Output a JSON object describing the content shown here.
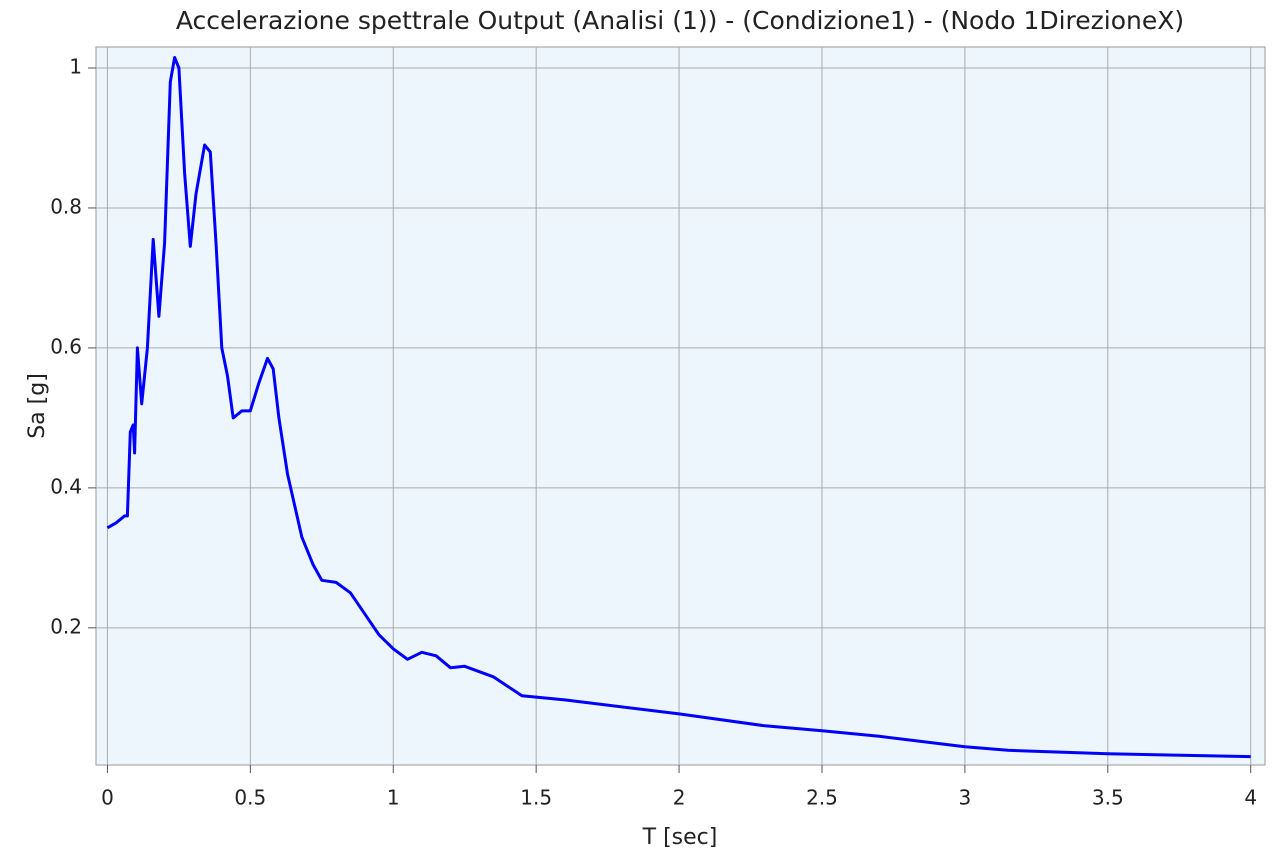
{
  "chart_data": {
    "type": "line",
    "title": "Accelerazione spettrale Output (Analisi (1)) - (Condizione1) - (Nodo 1DirezioneX)",
    "x_label": "T [sec]",
    "y_label": "Sa [g]",
    "x": [
      0.0,
      0.03,
      0.06,
      0.07,
      0.08,
      0.09,
      0.095,
      0.105,
      0.12,
      0.14,
      0.16,
      0.18,
      0.2,
      0.22,
      0.235,
      0.25,
      0.27,
      0.29,
      0.31,
      0.34,
      0.36,
      0.38,
      0.4,
      0.42,
      0.44,
      0.47,
      0.5,
      0.53,
      0.56,
      0.58,
      0.6,
      0.63,
      0.68,
      0.72,
      0.75,
      0.8,
      0.85,
      0.9,
      0.95,
      1.0,
      1.05,
      1.1,
      1.15,
      1.2,
      1.25,
      1.35,
      1.45,
      1.6,
      2.0,
      2.3,
      2.5,
      2.7,
      3.0,
      3.15,
      3.5,
      4.0
    ],
    "values": [
      0.343,
      0.35,
      0.36,
      0.36,
      0.48,
      0.49,
      0.45,
      0.6,
      0.52,
      0.6,
      0.755,
      0.645,
      0.75,
      0.98,
      1.015,
      1.0,
      0.85,
      0.745,
      0.82,
      0.89,
      0.88,
      0.75,
      0.6,
      0.56,
      0.5,
      0.51,
      0.51,
      0.55,
      0.585,
      0.57,
      0.5,
      0.42,
      0.33,
      0.29,
      0.268,
      0.265,
      0.25,
      0.22,
      0.19,
      0.17,
      0.155,
      0.165,
      0.16,
      0.143,
      0.145,
      0.13,
      0.103,
      0.097,
      0.077,
      0.06,
      0.053,
      0.045,
      0.03,
      0.025,
      0.02,
      0.016
    ],
    "color": "#0000ff",
    "xlim": [
      -0.04,
      4.05
    ],
    "ylim": [
      0.004,
      1.03
    ],
    "xticks": [
      0,
      0.5,
      1,
      1.5,
      2,
      2.5,
      3,
      3.5,
      4
    ],
    "yticks": [
      0.2,
      0.4,
      0.6,
      0.8,
      1
    ],
    "grid": true
  }
}
